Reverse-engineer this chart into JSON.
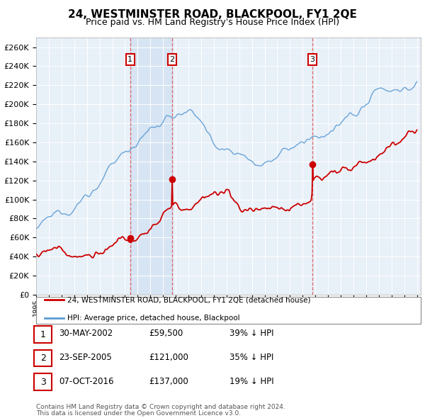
{
  "title": "24, WESTMINSTER ROAD, BLACKPOOL, FY1 2QE",
  "subtitle": "Price paid vs. HM Land Registry's House Price Index (HPI)",
  "hpi_label": "HPI: Average price, detached house, Blackpool",
  "price_label": "24, WESTMINSTER ROAD, BLACKPOOL, FY1 2QE (detached house)",
  "footer1": "Contains HM Land Registry data © Crown copyright and database right 2024.",
  "footer2": "This data is licensed under the Open Government Licence v3.0.",
  "ylim": [
    0,
    270000
  ],
  "ytick_step": 20000,
  "sale_events": [
    {
      "label": "1",
      "date": "30-MAY-2002",
      "price": 59500,
      "pct": "39%",
      "x_year": 2002.41
    },
    {
      "label": "2",
      "date": "23-SEP-2005",
      "price": 121000,
      "pct": "35%",
      "x_year": 2005.72
    },
    {
      "label": "3",
      "date": "07-OCT-2016",
      "price": 137000,
      "pct": "19%",
      "x_year": 2016.77
    }
  ],
  "hpi_color": "#5b9bd5",
  "price_color": "#cc0000",
  "dashed_color": "#cc0000",
  "plot_bg": "#e8f0f8",
  "grid_color": "#ffffff",
  "box_color": "#cc0000",
  "shade_color": "#c8d8f0",
  "xlim_start": 1995,
  "xlim_end": 2025.3
}
